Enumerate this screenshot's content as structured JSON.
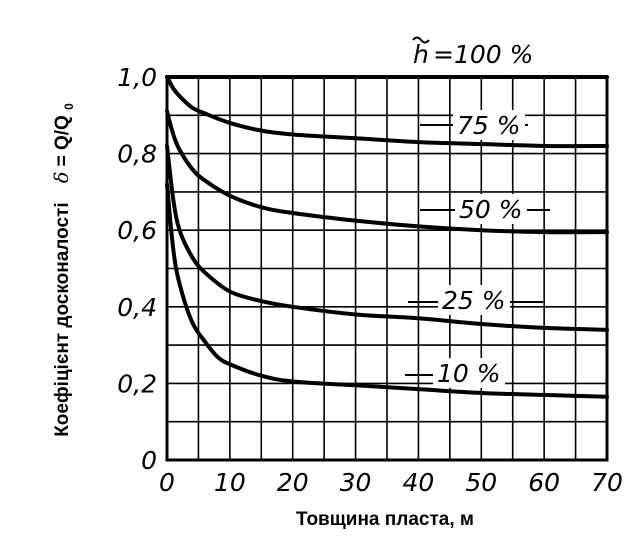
{
  "chart_data": {
    "type": "line",
    "title": "",
    "xlabel": "Товщина пласта, м",
    "ylabel_text": "Коефіцієнт досконалості",
    "ylabel_symbol": "δ",
    "ylabel_formula": "= Q/Q",
    "ylabel_subscript": "0",
    "xlim": [
      0,
      70
    ],
    "ylim": [
      0,
      1.0
    ],
    "x_ticks": [
      0,
      10,
      20,
      30,
      40,
      50,
      60,
      70
    ],
    "x_tick_labels": [
      "0",
      "10",
      "20",
      "30",
      "40",
      "50",
      "60",
      "70"
    ],
    "y_ticks": [
      0,
      0.2,
      0.4,
      0.6,
      0.8,
      1.0
    ],
    "y_tick_labels": [
      "0",
      "0,2",
      "0,4",
      "0,6",
      "0,8",
      "1,0"
    ],
    "x_grid_step": 5,
    "y_grid_step": 0.1,
    "grid": true,
    "series": [
      {
        "name": "h̃ = 100 %",
        "label_prefix": "h",
        "label_suffix": "=100 %",
        "x": [
          0,
          70
        ],
        "y": [
          1.0,
          1.0
        ]
      },
      {
        "name": "75 %",
        "x": [
          0,
          1,
          2,
          4,
          6,
          10,
          15,
          20,
          30,
          40,
          50,
          60,
          70
        ],
        "y": [
          1.0,
          0.97,
          0.95,
          0.92,
          0.905,
          0.88,
          0.86,
          0.85,
          0.84,
          0.83,
          0.825,
          0.82,
          0.82
        ]
      },
      {
        "name": "50 %",
        "x": [
          0,
          1,
          2,
          4,
          6,
          10,
          15,
          20,
          30,
          40,
          50,
          60,
          70
        ],
        "y": [
          0.91,
          0.85,
          0.81,
          0.76,
          0.73,
          0.69,
          0.66,
          0.645,
          0.625,
          0.61,
          0.6,
          0.595,
          0.595
        ]
      },
      {
        "name": "25 %",
        "x": [
          0,
          1,
          2,
          4,
          6,
          10,
          15,
          20,
          30,
          40,
          50,
          60,
          70
        ],
        "y": [
          0.82,
          0.68,
          0.6,
          0.53,
          0.49,
          0.44,
          0.415,
          0.4,
          0.38,
          0.37,
          0.355,
          0.345,
          0.34
        ]
      },
      {
        "name": "10 %",
        "x": [
          0,
          1,
          2,
          4,
          6,
          8,
          10,
          15,
          20,
          30,
          40,
          50,
          60,
          70
        ],
        "y": [
          0.72,
          0.55,
          0.46,
          0.36,
          0.31,
          0.27,
          0.25,
          0.22,
          0.205,
          0.195,
          0.185,
          0.175,
          0.17,
          0.165
        ]
      }
    ]
  }
}
